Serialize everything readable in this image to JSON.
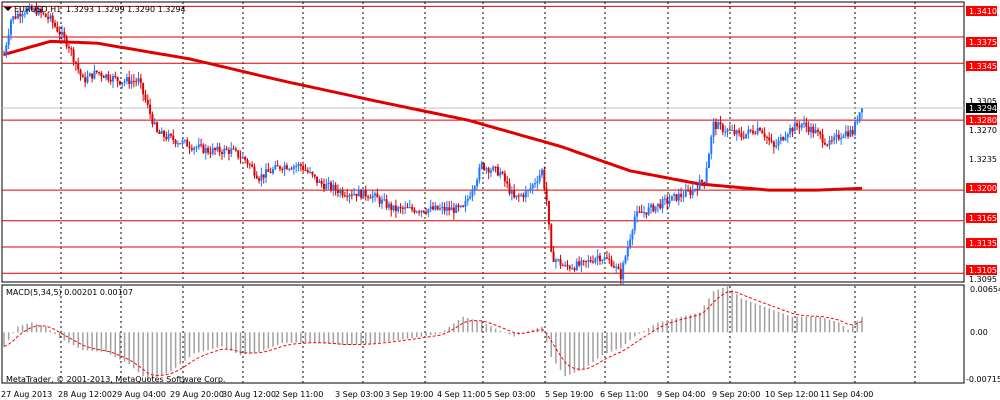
{
  "header": {
    "symbol": "EURUSD,H1",
    "ohlc": "1.3293 1.3299 1.3290 1.3294"
  },
  "colors": {
    "background": "#ffffff",
    "grid": "#000000",
    "bull": "#1e78ff",
    "bear": "#dc0000",
    "ma": "#e00000",
    "level_line": "#e00000",
    "level_label_bg": "#ff0000",
    "macd_hist": "#a0a0a0",
    "macd_signal": "#ff0000",
    "current_price_line": "#c0c0c0"
  },
  "price_axis": {
    "ticks": [
      "1.3410",
      "1.3375",
      "1.3345",
      "1.3305",
      "1.3294",
      "1.3280",
      "1.3270",
      "1.3235",
      "1.3200",
      "1.3165",
      "1.3135",
      "1.3105",
      "1.3095"
    ],
    "current_price": "1.3294"
  },
  "levels": [
    "1.3410",
    "1.3375",
    "1.3345",
    "1.3280",
    "1.3200",
    "1.3165",
    "1.3135",
    "1.3105"
  ],
  "macd": {
    "title": "MACD(5,34,5) 0.00201 0.00107",
    "axis_ticks": [
      "0.00654",
      "0.00",
      "-0.00715"
    ]
  },
  "copyright": "MetaTrader, © 2001-2013, MetaQuotes Software Corp.",
  "time_axis": {
    "labels": [
      "27 Aug 2013",
      "28 Aug 12:00",
      "29 Aug 04:00",
      "29 Aug 20:00",
      "30 Aug 12:00",
      "2 Sep 11:00",
      "3 Sep 03:00",
      "3 Sep 19:00",
      "4 Sep 11:00",
      "5 Sep 03:00",
      "5 Sep 19:00",
      "6 Sep 11:00",
      "9 Sep 04:00",
      "9 Sep 20:00",
      "10 Sep 12:00",
      "11 Sep 04:00"
    ]
  },
  "chart_data": {
    "type": "candlestick",
    "symbol": "EURUSD",
    "timeframe": "H1",
    "ylim": [
      1.3095,
      1.3415
    ],
    "levels": [
      1.341,
      1.3375,
      1.3345,
      1.328,
      1.32,
      1.3165,
      1.3135,
      1.3105
    ],
    "price_path": [
      [
        0,
        1.3355
      ],
      [
        3,
        1.3395
      ],
      [
        8,
        1.3405
      ],
      [
        14,
        1.3405
      ],
      [
        20,
        1.3395
      ],
      [
        28,
        1.3365
      ],
      [
        34,
        1.3325
      ],
      [
        40,
        1.3335
      ],
      [
        50,
        1.3325
      ],
      [
        58,
        1.3325
      ],
      [
        66,
        1.3265
      ],
      [
        76,
        1.3255
      ],
      [
        88,
        1.3245
      ],
      [
        98,
        1.3245
      ],
      [
        104,
        1.3235
      ],
      [
        110,
        1.3215
      ],
      [
        120,
        1.3228
      ],
      [
        128,
        1.3228
      ],
      [
        136,
        1.3208
      ],
      [
        146,
        1.3198
      ],
      [
        158,
        1.3195
      ],
      [
        168,
        1.3178
      ],
      [
        180,
        1.3178
      ],
      [
        192,
        1.3178
      ],
      [
        198,
        1.3178
      ],
      [
        206,
        1.3228
      ],
      [
        214,
        1.322
      ],
      [
        220,
        1.319
      ],
      [
        226,
        1.3198
      ],
      [
        232,
        1.3222
      ],
      [
        234,
        1.3188
      ],
      [
        236,
        1.3125
      ],
      [
        242,
        1.3112
      ],
      [
        250,
        1.3115
      ],
      [
        256,
        1.3125
      ],
      [
        262,
        1.3118
      ],
      [
        266,
        1.3102
      ],
      [
        272,
        1.317
      ],
      [
        280,
        1.318
      ],
      [
        288,
        1.319
      ],
      [
        296,
        1.3198
      ],
      [
        302,
        1.3212
      ],
      [
        306,
        1.3275
      ],
      [
        312,
        1.3268
      ],
      [
        318,
        1.3262
      ],
      [
        326,
        1.3272
      ],
      [
        332,
        1.3248
      ],
      [
        338,
        1.3268
      ],
      [
        344,
        1.3276
      ],
      [
        350,
        1.3266
      ],
      [
        356,
        1.3252
      ],
      [
        362,
        1.3266
      ],
      [
        366,
        1.3266
      ],
      [
        370,
        1.3298
      ]
    ],
    "ma_path": [
      [
        0,
        1.3355
      ],
      [
        20,
        1.337
      ],
      [
        40,
        1.3368
      ],
      [
        80,
        1.335
      ],
      [
        120,
        1.3325
      ],
      [
        160,
        1.3302
      ],
      [
        200,
        1.328
      ],
      [
        240,
        1.325
      ],
      [
        270,
        1.3222
      ],
      [
        300,
        1.3207
      ],
      [
        330,
        1.32
      ],
      [
        350,
        1.32
      ],
      [
        370,
        1.3202
      ]
    ],
    "macd_hist_path": [
      [
        0,
        -0.002
      ],
      [
        6,
        0.0008
      ],
      [
        12,
        0.0014
      ],
      [
        18,
        0.0008
      ],
      [
        24,
        -0.0008
      ],
      [
        34,
        -0.0025
      ],
      [
        44,
        -0.0028
      ],
      [
        54,
        -0.0045
      ],
      [
        62,
        -0.0068
      ],
      [
        72,
        -0.0055
      ],
      [
        82,
        -0.003
      ],
      [
        94,
        -0.002
      ],
      [
        102,
        -0.0032
      ],
      [
        110,
        -0.0028
      ],
      [
        120,
        -0.0015
      ],
      [
        134,
        -0.0014
      ],
      [
        146,
        -0.0018
      ],
      [
        158,
        -0.0016
      ],
      [
        176,
        -0.0008
      ],
      [
        188,
        -0.0002
      ],
      [
        198,
        0.0022
      ],
      [
        206,
        0.0015
      ],
      [
        214,
        0.0002
      ],
      [
        220,
        -0.0006
      ],
      [
        226,
        0.0002
      ],
      [
        232,
        0.0008
      ],
      [
        236,
        -0.0035
      ],
      [
        242,
        -0.0062
      ],
      [
        250,
        -0.0052
      ],
      [
        258,
        -0.0032
      ],
      [
        266,
        -0.0022
      ],
      [
        272,
        -0.0006
      ],
      [
        282,
        0.0014
      ],
      [
        292,
        0.0022
      ],
      [
        300,
        0.0028
      ],
      [
        306,
        0.0058
      ],
      [
        312,
        0.0065
      ],
      [
        318,
        0.0048
      ],
      [
        328,
        0.0036
      ],
      [
        340,
        0.0022
      ],
      [
        352,
        0.0022
      ],
      [
        360,
        0.0014
      ],
      [
        364,
        0.0004
      ],
      [
        370,
        0.0022
      ]
    ],
    "macd_ylim": [
      -0.00715,
      0.00654
    ]
  }
}
